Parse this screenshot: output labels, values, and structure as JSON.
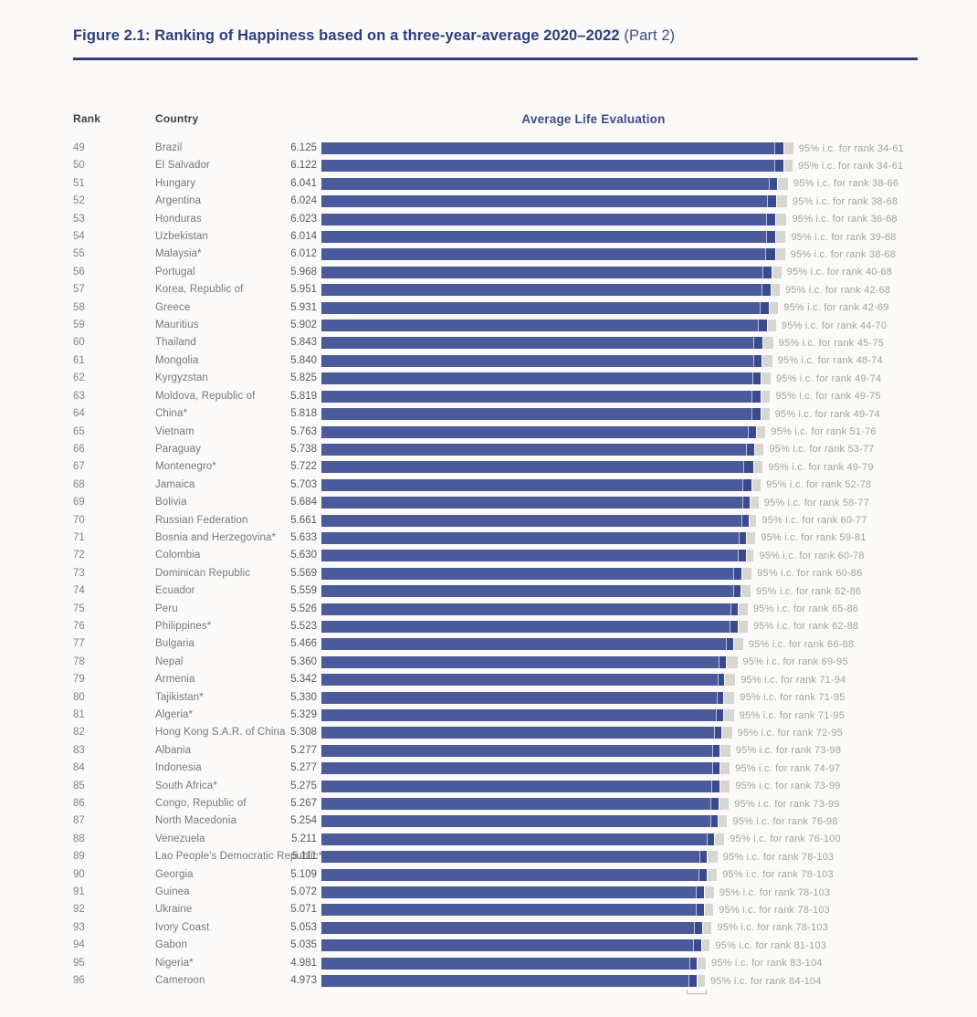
{
  "figure": {
    "title_bold": "Figure 2.1: Ranking of Happiness based on a three-year-average 2020–2022",
    "title_suffix": " (Part 2)"
  },
  "table_headers": {
    "rank": "Rank",
    "country": "Country"
  },
  "colors": {
    "navy": "#2d3e80",
    "navy_soft": "#3c4b8e",
    "bar_blue": "#4b5a9a",
    "bar_dark_blue": "#394a8e",
    "ci_gray": "#d8d6d1",
    "background": "#fbfaf8"
  },
  "chart_data": {
    "type": "bar",
    "orientation": "horizontal",
    "value_axis_title": "Average Life Evaluation",
    "value_range": [
      0,
      6.5
    ],
    "legend": "gray whisker = 95% confidence interval",
    "rows": [
      {
        "rank": 49,
        "country": "Brazil",
        "value": "6.125",
        "ci_label": "95% i.c. for rank 34-61",
        "ci_low": 34,
        "ci_high": 61
      },
      {
        "rank": 50,
        "country": "El Salvador",
        "value": "6.122",
        "ci_label": "95% i.c. for rank 34-61",
        "ci_low": 34,
        "ci_high": 61
      },
      {
        "rank": 51,
        "country": "Hungary",
        "value": "6.041",
        "ci_label": "95% i.c. for rank 38-66",
        "ci_low": 38,
        "ci_high": 66
      },
      {
        "rank": 52,
        "country": "Argentina",
        "value": "6.024",
        "ci_label": "95% i.c. for rank 38-68",
        "ci_low": 38,
        "ci_high": 68
      },
      {
        "rank": 53,
        "country": "Honduras",
        "value": "6.023",
        "ci_label": "95% i.c. for rank 36-68",
        "ci_low": 36,
        "ci_high": 68
      },
      {
        "rank": 54,
        "country": "Uzbekistan",
        "value": "6.014",
        "ci_label": "95% i.c. for rank 39-68",
        "ci_low": 39,
        "ci_high": 68
      },
      {
        "rank": 55,
        "country": "Malaysia*",
        "value": "6.012",
        "ci_label": "95% i.c. for rank 38-68",
        "ci_low": 38,
        "ci_high": 68
      },
      {
        "rank": 56,
        "country": "Portugal",
        "value": "5.968",
        "ci_label": "95% i.c. for rank 40-68",
        "ci_low": 40,
        "ci_high": 68
      },
      {
        "rank": 57,
        "country": "Korea, Republic of",
        "value": "5.951",
        "ci_label": "95% i.c. for rank 42-68",
        "ci_low": 42,
        "ci_high": 68
      },
      {
        "rank": 58,
        "country": "Greece",
        "value": "5.931",
        "ci_label": "95% i.c. for rank 42-69",
        "ci_low": 42,
        "ci_high": 69
      },
      {
        "rank": 59,
        "country": "Mauritius",
        "value": "5.902",
        "ci_label": "95% i.c. for rank 44-70",
        "ci_low": 44,
        "ci_high": 70
      },
      {
        "rank": 60,
        "country": "Thailand",
        "value": "5.843",
        "ci_label": "95% i.c. for rank 45-75",
        "ci_low": 45,
        "ci_high": 75
      },
      {
        "rank": 61,
        "country": "Mongolia",
        "value": "5.840",
        "ci_label": "95% i.c. for rank 48-74",
        "ci_low": 48,
        "ci_high": 74
      },
      {
        "rank": 62,
        "country": "Kyrgyzstan",
        "value": "5.825",
        "ci_label": "95% i.c. for rank 49-74",
        "ci_low": 49,
        "ci_high": 74
      },
      {
        "rank": 63,
        "country": "Moldova, Republic of",
        "value": "5.819",
        "ci_label": "95% i.c. for rank 49-75",
        "ci_low": 49,
        "ci_high": 75
      },
      {
        "rank": 64,
        "country": "China*",
        "value": "5.818",
        "ci_label": "95% i.c. for rank 49-74",
        "ci_low": 49,
        "ci_high": 74
      },
      {
        "rank": 65,
        "country": "Vietnam",
        "value": "5.763",
        "ci_label": "95% i.c. for rank 51-76",
        "ci_low": 51,
        "ci_high": 76
      },
      {
        "rank": 66,
        "country": "Paraguay",
        "value": "5.738",
        "ci_label": "95% i.c. for rank 53-77",
        "ci_low": 53,
        "ci_high": 77
      },
      {
        "rank": 67,
        "country": "Montenegro*",
        "value": "5.722",
        "ci_label": "95% i.c. for rank 49-79",
        "ci_low": 49,
        "ci_high": 79
      },
      {
        "rank": 68,
        "country": "Jamaica",
        "value": "5.703",
        "ci_label": "95% i.c. for rank 52-78",
        "ci_low": 52,
        "ci_high": 78
      },
      {
        "rank": 69,
        "country": "Bolivia",
        "value": "5.684",
        "ci_label": "95% i.c. for rank 58-77",
        "ci_low": 58,
        "ci_high": 77
      },
      {
        "rank": 70,
        "country": "Russian Federation",
        "value": "5.661",
        "ci_label": "95% i.c. for rank 60-77",
        "ci_low": 60,
        "ci_high": 77
      },
      {
        "rank": 71,
        "country": "Bosnia and Herzegovina*",
        "value": "5.633",
        "ci_label": "95% i.c. for rank 59-81",
        "ci_low": 59,
        "ci_high": 81
      },
      {
        "rank": 72,
        "country": "Colombia",
        "value": "5.630",
        "ci_label": "95% i.c. for rank 60-78",
        "ci_low": 60,
        "ci_high": 78
      },
      {
        "rank": 73,
        "country": "Dominican Republic",
        "value": "5.569",
        "ci_label": "95% i.c. for rank 60-86",
        "ci_low": 60,
        "ci_high": 86
      },
      {
        "rank": 74,
        "country": "Ecuador",
        "value": "5.559",
        "ci_label": "95% i.c. for rank 62-86",
        "ci_low": 62,
        "ci_high": 86
      },
      {
        "rank": 75,
        "country": "Peru",
        "value": "5.526",
        "ci_label": "95% i.c. for rank 65-86",
        "ci_low": 65,
        "ci_high": 86
      },
      {
        "rank": 76,
        "country": "Philippines*",
        "value": "5.523",
        "ci_label": "95% i.c. for rank 62-88",
        "ci_low": 62,
        "ci_high": 88
      },
      {
        "rank": 77,
        "country": "Bulgaria",
        "value": "5.466",
        "ci_label": "95% i.c. for rank 66-88",
        "ci_low": 66,
        "ci_high": 88
      },
      {
        "rank": 78,
        "country": "Nepal",
        "value": "5.360",
        "ci_label": "95% i.c. for rank 69-95",
        "ci_low": 69,
        "ci_high": 95
      },
      {
        "rank": 79,
        "country": "Armenia",
        "value": "5.342",
        "ci_label": "95% i.c. for rank 71-94",
        "ci_low": 71,
        "ci_high": 94
      },
      {
        "rank": 80,
        "country": "Tajikistan*",
        "value": "5.330",
        "ci_label": "95% i.c. for rank 71-95",
        "ci_low": 71,
        "ci_high": 95
      },
      {
        "rank": 81,
        "country": "Algeria*",
        "value": "5.329",
        "ci_label": "95% i.c. for rank 71-95",
        "ci_low": 71,
        "ci_high": 95
      },
      {
        "rank": 82,
        "country": "Hong Kong S.A.R. of China",
        "value": "5.308",
        "ci_label": "95% i.c. for rank 72-95",
        "ci_low": 72,
        "ci_high": 95
      },
      {
        "rank": 83,
        "country": "Albania",
        "value": "5.277",
        "ci_label": "95% i.c. for rank 73-98",
        "ci_low": 73,
        "ci_high": 98
      },
      {
        "rank": 84,
        "country": "Indonesia",
        "value": "5.277",
        "ci_label": "95% i.c. for rank 74-97",
        "ci_low": 74,
        "ci_high": 97
      },
      {
        "rank": 85,
        "country": "South Africa*",
        "value": "5.275",
        "ci_label": "95% i.c. for rank 73-99",
        "ci_low": 73,
        "ci_high": 99
      },
      {
        "rank": 86,
        "country": "Congo, Republic of",
        "value": "5.267",
        "ci_label": "95% i.c. for rank 73-99",
        "ci_low": 73,
        "ci_high": 99
      },
      {
        "rank": 87,
        "country": "North Macedonia",
        "value": "5.254",
        "ci_label": "95% i.c. for rank 76-98",
        "ci_low": 76,
        "ci_high": 98
      },
      {
        "rank": 88,
        "country": "Venezuela",
        "value": "5.211",
        "ci_label": "95% i.c. for rank 76-100",
        "ci_low": 76,
        "ci_high": 100
      },
      {
        "rank": 89,
        "country": "Lao People's Democratic Republic*",
        "value": "5.111",
        "ci_label": "95% i.c. for rank 78-103",
        "ci_low": 78,
        "ci_high": 103
      },
      {
        "rank": 90,
        "country": "Georgia",
        "value": "5.109",
        "ci_label": "95% i.c. for rank 78-103",
        "ci_low": 78,
        "ci_high": 103
      },
      {
        "rank": 91,
        "country": "Guinea",
        "value": "5.072",
        "ci_label": "95% i.c. for rank 78-103",
        "ci_low": 78,
        "ci_high": 103
      },
      {
        "rank": 92,
        "country": "Ukraine",
        "value": "5.071",
        "ci_label": "95% i.c. for rank 78-103",
        "ci_low": 78,
        "ci_high": 103
      },
      {
        "rank": 93,
        "country": "Ivory Coast",
        "value": "5.053",
        "ci_label": "95% i.c. for rank 78-103",
        "ci_low": 78,
        "ci_high": 103
      },
      {
        "rank": 94,
        "country": "Gabon",
        "value": "5.035",
        "ci_label": "95% i.c. for rank 81-103",
        "ci_low": 81,
        "ci_high": 103
      },
      {
        "rank": 95,
        "country": "Nigeria*",
        "value": "4.981",
        "ci_label": "95% i.c. for rank 83-104",
        "ci_low": 83,
        "ci_high": 104
      },
      {
        "rank": 96,
        "country": "Cameroon",
        "value": "4.973",
        "ci_label": "95% i.c. for rank 84-104",
        "ci_low": 84,
        "ci_high": 104
      }
    ]
  }
}
